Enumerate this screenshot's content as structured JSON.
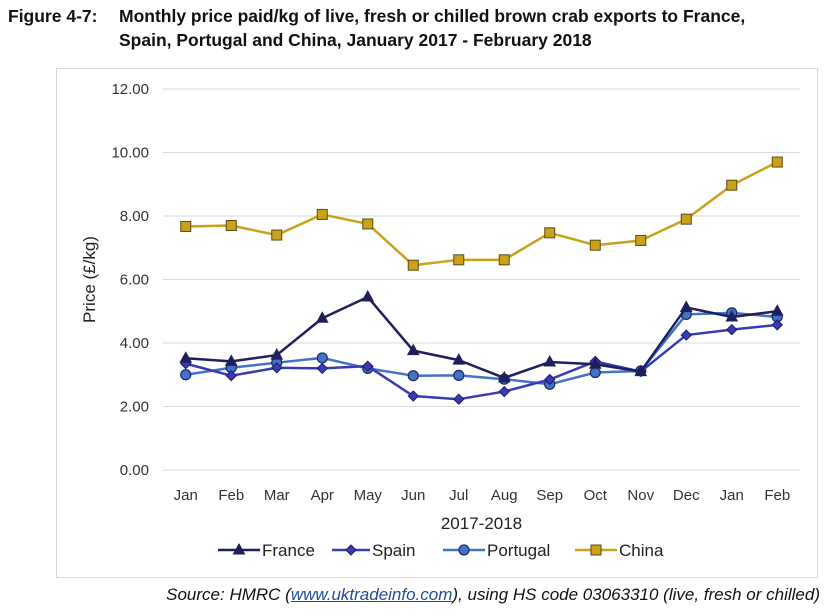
{
  "figure": {
    "number": "Figure 4-7:",
    "title_line1": "Monthly price paid/kg of live, fresh or chilled brown crab exports to France,",
    "title_line2": "Spain, Portugal and China, January 2017 - February 2018"
  },
  "source": {
    "prefix": "Source: HMRC (",
    "link": "www.uktradeinfo.com",
    "suffix": "), using HS code 03063310 (live, fresh or chilled)"
  },
  "chart_data": {
    "type": "line",
    "xlabel": "2017-2018",
    "ylabel": "Price (£/kg)",
    "ylim": [
      0,
      12
    ],
    "yticks": [
      "0.00",
      "2.00",
      "4.00",
      "6.00",
      "8.00",
      "10.00",
      "12.00"
    ],
    "categories": [
      "Jan",
      "Feb",
      "Mar",
      "Apr",
      "May",
      "Jun",
      "Jul",
      "Aug",
      "Sep",
      "Oct",
      "Nov",
      "Dec",
      "Jan",
      "Feb"
    ],
    "grid": true,
    "legend_position": "bottom",
    "series": [
      {
        "name": "France",
        "color": "#1f1f5c",
        "marker": "triangle",
        "values": [
          3.52,
          3.42,
          3.62,
          4.78,
          5.45,
          3.76,
          3.46,
          2.9,
          3.4,
          3.33,
          3.1,
          5.12,
          4.82,
          5.0
        ]
      },
      {
        "name": "Spain",
        "color": "#3a3ab5",
        "marker": "diamond",
        "values": [
          3.35,
          2.97,
          3.22,
          3.2,
          3.27,
          2.33,
          2.23,
          2.47,
          2.85,
          3.42,
          3.1,
          4.25,
          4.42,
          4.57
        ]
      },
      {
        "name": "Portugal",
        "color": "#4472c4",
        "marker": "circle",
        "values": [
          3.0,
          3.22,
          3.38,
          3.53,
          3.2,
          2.97,
          2.98,
          2.86,
          2.7,
          3.07,
          3.12,
          4.9,
          4.95,
          4.82
        ]
      },
      {
        "name": "China",
        "color": "#c9a11b",
        "marker": "square",
        "values": [
          7.67,
          7.7,
          7.4,
          8.05,
          7.75,
          6.45,
          6.62,
          6.62,
          7.47,
          7.08,
          7.23,
          7.9,
          8.97,
          9.7
        ]
      }
    ]
  }
}
